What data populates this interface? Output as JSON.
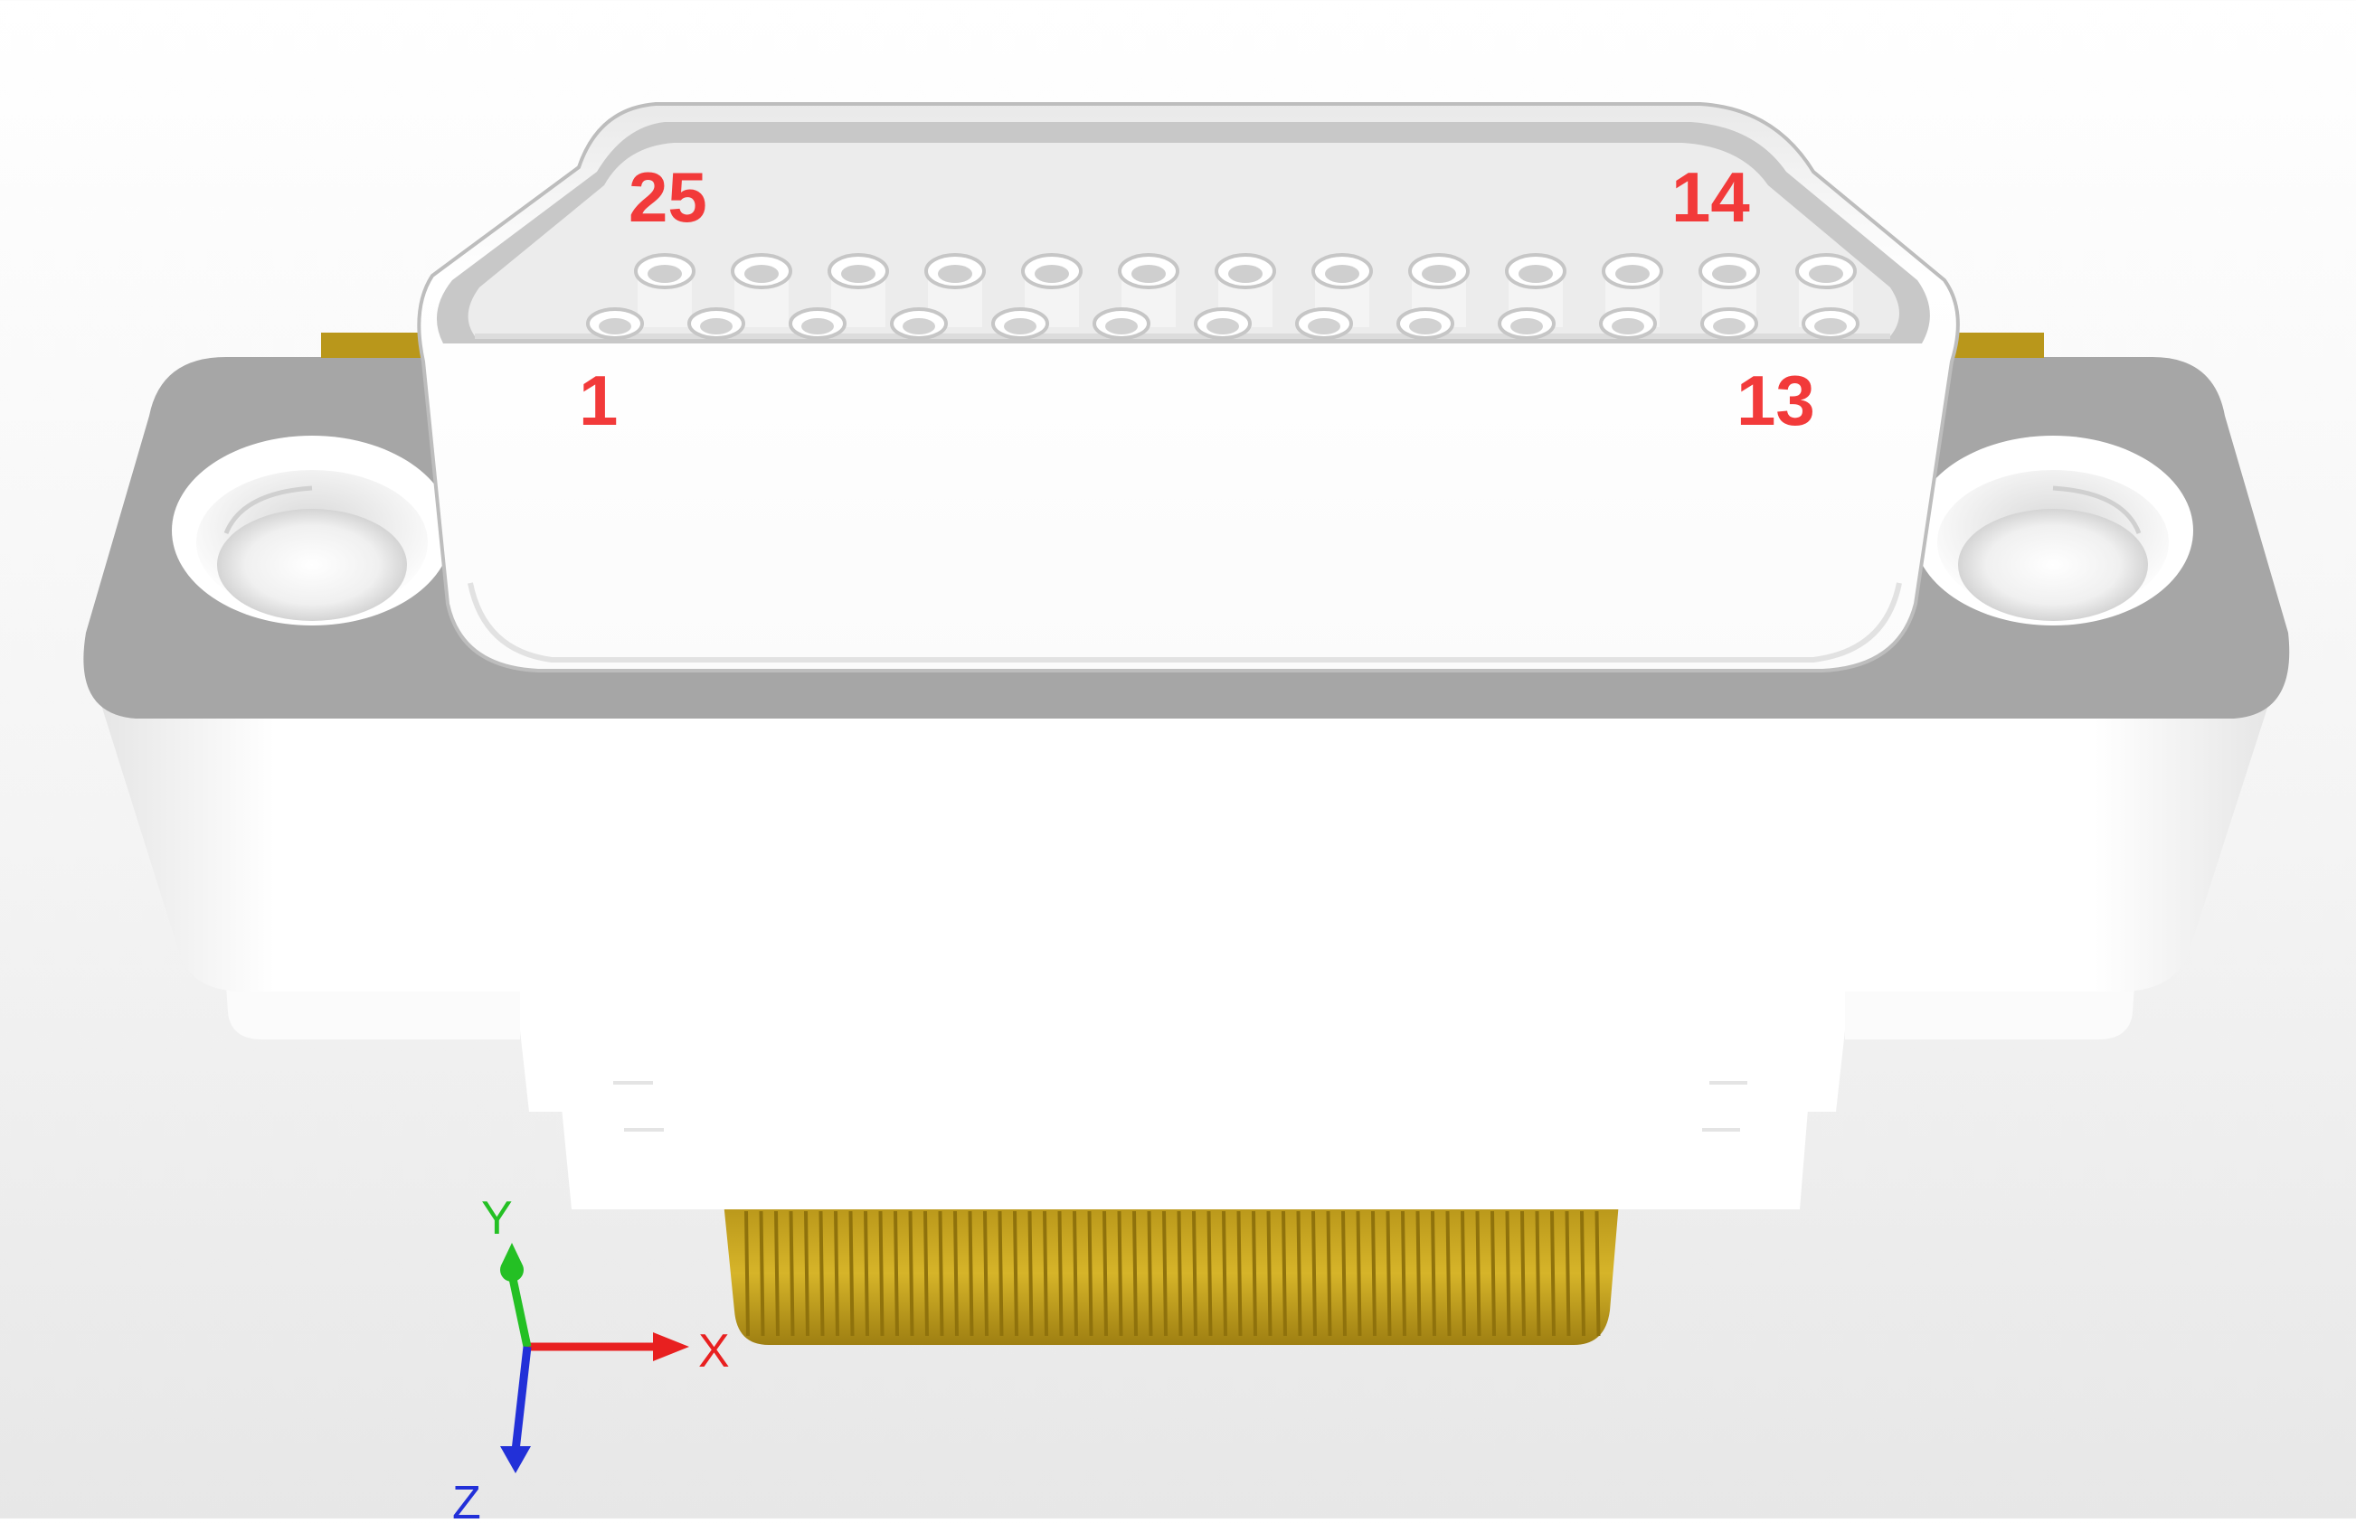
{
  "scene": {
    "pin_labels": {
      "top_left": "25",
      "top_right": "14",
      "bottom_left": "1",
      "bottom_right": "13"
    },
    "axes": {
      "x": "X",
      "y": "Y",
      "z": "Z"
    }
  },
  "colors": {
    "label": "#f23a3a",
    "flange": "#a6a6a6",
    "shell": "#ffffff",
    "contacts": "#c9a51c",
    "x_axis": "#e82020",
    "y_axis": "#24c024",
    "z_axis": "#2230d8"
  }
}
